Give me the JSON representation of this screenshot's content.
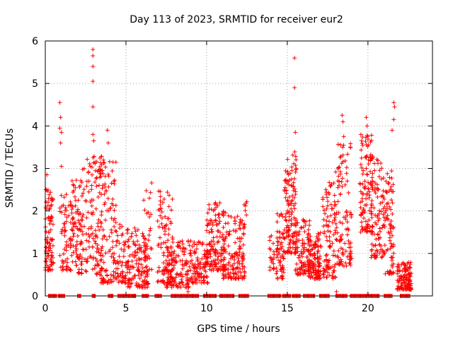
{
  "chart_data": {
    "type": "scatter",
    "title": "Day 113 of 2023, SRMTID for receiver eur2",
    "xlabel": "GPS time / hours",
    "ylabel": "SRMTID / TECUs",
    "xlim": [
      0,
      24
    ],
    "ylim": [
      0,
      6
    ],
    "xticks": [
      0,
      5,
      10,
      15,
      20
    ],
    "yticks": [
      0,
      1,
      2,
      3,
      4,
      5,
      6
    ],
    "grid": true,
    "marker": "+",
    "series_color": "#ff0000",
    "clusters": [
      {
        "x": [
          0.0,
          0.5
        ],
        "y": [
          0.6,
          2.6
        ],
        "n": 90
      },
      {
        "x": [
          0.9,
          1.7
        ],
        "y": [
          0.6,
          2.4
        ],
        "n": 70
      },
      {
        "x": [
          1.6,
          2.3
        ],
        "y": [
          0.5,
          2.8
        ],
        "n": 80
      },
      {
        "x": [
          2.3,
          3.6
        ],
        "y": [
          0.5,
          3.3
        ],
        "n": 130
      },
      {
        "x": [
          3.4,
          4.4
        ],
        "y": [
          0.3,
          3.2
        ],
        "n": 100
      },
      {
        "x": [
          4.3,
          5.2
        ],
        "y": [
          0.3,
          1.7
        ],
        "n": 70
      },
      {
        "x": [
          5.1,
          6.4
        ],
        "y": [
          0.2,
          1.6
        ],
        "n": 130
      },
      {
        "x": [
          6.1,
          6.6
        ],
        "y": [
          0.5,
          2.7
        ],
        "n": 25
      },
      {
        "x": [
          6.9,
          7.9
        ],
        "y": [
          0.3,
          2.6
        ],
        "n": 90
      },
      {
        "x": [
          7.5,
          9.0
        ],
        "y": [
          0.2,
          1.3
        ],
        "n": 140
      },
      {
        "x": [
          9.0,
          10.1
        ],
        "y": [
          0.3,
          1.3
        ],
        "n": 100
      },
      {
        "x": [
          10.0,
          11.2
        ],
        "y": [
          0.6,
          2.2
        ],
        "n": 150
      },
      {
        "x": [
          11.0,
          12.4
        ],
        "y": [
          0.4,
          1.9
        ],
        "n": 130
      },
      {
        "x": [
          12.2,
          12.5
        ],
        "y": [
          1.6,
          2.3
        ],
        "n": 10
      },
      {
        "x": [
          13.9,
          14.2
        ],
        "y": [
          0.6,
          1.5
        ],
        "n": 20
      },
      {
        "x": [
          14.3,
          14.8
        ],
        "y": [
          0.4,
          2.0
        ],
        "n": 60
      },
      {
        "x": [
          14.8,
          15.6
        ],
        "y": [
          1.0,
          3.4
        ],
        "n": 130
      },
      {
        "x": [
          15.5,
          16.4
        ],
        "y": [
          0.5,
          1.8
        ],
        "n": 100
      },
      {
        "x": [
          16.3,
          17.1
        ],
        "y": [
          0.4,
          1.5
        ],
        "n": 110
      },
      {
        "x": [
          17.2,
          18.0
        ],
        "y": [
          0.4,
          2.7
        ],
        "n": 100
      },
      {
        "x": [
          18.0,
          19.0
        ],
        "y": [
          0.7,
          3.6
        ],
        "n": 110
      },
      {
        "x": [
          19.5,
          20.3
        ],
        "y": [
          1.5,
          3.8
        ],
        "n": 110
      },
      {
        "x": [
          20.2,
          21.0
        ],
        "y": [
          0.9,
          3.3
        ],
        "n": 90
      },
      {
        "x": [
          21.0,
          21.6
        ],
        "y": [
          0.5,
          3.0
        ],
        "n": 80
      },
      {
        "x": [
          21.8,
          22.7
        ],
        "y": [
          0.15,
          0.8
        ],
        "n": 120
      }
    ],
    "outliers": [
      {
        "x": 0.1,
        "y": 2.85
      },
      {
        "x": 0.9,
        "y": 4.55
      },
      {
        "x": 0.95,
        "y": 4.2
      },
      {
        "x": 0.9,
        "y": 3.95
      },
      {
        "x": 1.0,
        "y": 3.85
      },
      {
        "x": 0.95,
        "y": 3.6
      },
      {
        "x": 1.0,
        "y": 3.05
      },
      {
        "x": 2.95,
        "y": 5.8
      },
      {
        "x": 2.95,
        "y": 5.65
      },
      {
        "x": 2.95,
        "y": 5.4
      },
      {
        "x": 2.95,
        "y": 5.05
      },
      {
        "x": 2.95,
        "y": 4.45
      },
      {
        "x": 2.95,
        "y": 3.8
      },
      {
        "x": 3.0,
        "y": 3.65
      },
      {
        "x": 3.85,
        "y": 3.9
      },
      {
        "x": 3.9,
        "y": 3.6
      },
      {
        "x": 4.2,
        "y": 3.15
      },
      {
        "x": 15.45,
        "y": 5.6
      },
      {
        "x": 15.45,
        "y": 4.9
      },
      {
        "x": 15.5,
        "y": 3.85
      },
      {
        "x": 18.4,
        "y": 4.25
      },
      {
        "x": 18.45,
        "y": 4.1
      },
      {
        "x": 18.5,
        "y": 3.75
      },
      {
        "x": 19.9,
        "y": 4.2
      },
      {
        "x": 19.95,
        "y": 4.0
      },
      {
        "x": 20.0,
        "y": 3.75
      },
      {
        "x": 21.6,
        "y": 4.55
      },
      {
        "x": 21.65,
        "y": 4.45
      },
      {
        "x": 21.6,
        "y": 4.15
      },
      {
        "x": 21.5,
        "y": 3.9
      },
      {
        "x": 8.85,
        "y": 0.1
      },
      {
        "x": 18.05,
        "y": 0.1
      },
      {
        "x": 20.6,
        "y": 1.05
      }
    ],
    "baseline_ranges": [
      [
        0.2,
        0.7
      ],
      [
        0.8,
        1.2
      ],
      [
        2.0,
        2.2
      ],
      [
        2.9,
        3.1
      ],
      [
        3.9,
        4.2
      ],
      [
        4.5,
        5.6
      ],
      [
        5.4,
        5.6
      ],
      [
        6.0,
        6.4
      ],
      [
        6.8,
        7.2
      ],
      [
        7.8,
        9.5
      ],
      [
        9.8,
        10.0
      ],
      [
        10.0,
        10.6
      ],
      [
        10.8,
        11.7
      ],
      [
        12.0,
        12.6
      ],
      [
        13.8,
        14.6
      ],
      [
        14.7,
        15.2
      ],
      [
        15.3,
        15.8
      ],
      [
        16.0,
        16.7
      ],
      [
        17.0,
        17.6
      ],
      [
        18.0,
        18.7
      ],
      [
        18.9,
        20.7
      ],
      [
        21.0,
        21.5
      ],
      [
        22.0,
        22.6
      ]
    ]
  }
}
